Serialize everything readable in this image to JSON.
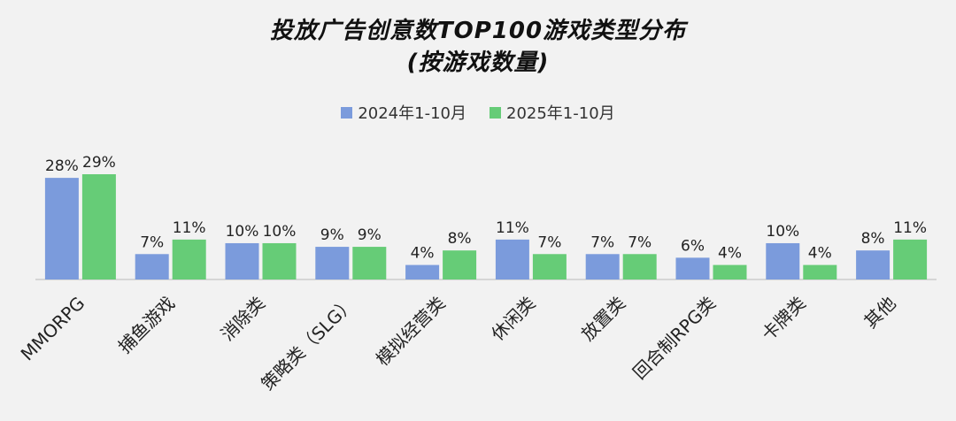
{
  "chart_data": {
    "type": "bar",
    "title": "投放广告创意数TOP100游戏类型分布",
    "subtitle": "(按游戏数量)",
    "categories": [
      "MMORPG",
      "捕鱼游戏",
      "消除类",
      "策略类（SLG）",
      "模拟经营类",
      "休闲类",
      "放置类",
      "回合制RPG类",
      "卡牌类",
      "其他"
    ],
    "series": [
      {
        "name": "2024年1-10月",
        "color": "#7b9bdc",
        "values": [
          28,
          7,
          10,
          9,
          4,
          11,
          7,
          6,
          10,
          8
        ],
        "labels": [
          "28%",
          "7%",
          "10%",
          "9%",
          "4%",
          "11%",
          "7%",
          "6%",
          "10%",
          "8%"
        ]
      },
      {
        "name": "2025年1-10月",
        "color": "#66cc77",
        "values": [
          29,
          11,
          10,
          9,
          8,
          7,
          7,
          4,
          4,
          11
        ],
        "labels": [
          "29%",
          "11%",
          "10%",
          "9%",
          "8%",
          "7%",
          "7%",
          "4%",
          "4%",
          "11%"
        ]
      }
    ],
    "ylim": [
      0,
      31
    ],
    "legend": "top",
    "grid": false
  }
}
